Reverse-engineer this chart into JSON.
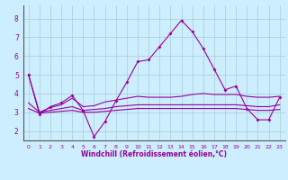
{
  "xlabel": "Windchill (Refroidissement éolien,°C)",
  "background_color": "#cceeff",
  "line_color": "#990099",
  "grid_color": "#aacccc",
  "xlim": [
    -0.5,
    23.5
  ],
  "ylim": [
    1.5,
    8.7
  ],
  "yticks": [
    2,
    3,
    4,
    5,
    6,
    7,
    8
  ],
  "xticks": [
    0,
    1,
    2,
    3,
    4,
    5,
    6,
    7,
    8,
    9,
    10,
    11,
    12,
    13,
    14,
    15,
    16,
    17,
    18,
    19,
    20,
    21,
    22,
    23
  ],
  "line1": [
    5.0,
    2.9,
    3.3,
    3.5,
    3.9,
    3.1,
    1.7,
    2.5,
    3.6,
    4.6,
    5.7,
    5.8,
    6.5,
    7.2,
    7.9,
    7.3,
    6.4,
    5.3,
    4.2,
    4.4,
    3.2,
    2.6,
    2.6,
    3.8
  ],
  "line2": [
    5.0,
    3.0,
    3.25,
    3.4,
    3.75,
    3.3,
    3.35,
    3.55,
    3.65,
    3.75,
    3.85,
    3.8,
    3.8,
    3.8,
    3.85,
    3.95,
    4.0,
    3.95,
    3.95,
    3.95,
    3.85,
    3.8,
    3.8,
    3.85
  ],
  "line3": [
    3.5,
    3.0,
    3.1,
    3.2,
    3.3,
    3.1,
    3.15,
    3.2,
    3.3,
    3.35,
    3.4,
    3.4,
    3.4,
    3.4,
    3.4,
    3.4,
    3.4,
    3.4,
    3.4,
    3.4,
    3.35,
    3.3,
    3.3,
    3.4
  ],
  "line4": [
    3.2,
    2.95,
    3.0,
    3.05,
    3.1,
    3.0,
    3.0,
    3.05,
    3.1,
    3.15,
    3.2,
    3.2,
    3.2,
    3.2,
    3.2,
    3.2,
    3.2,
    3.2,
    3.2,
    3.2,
    3.15,
    3.1,
    3.1,
    3.15
  ]
}
